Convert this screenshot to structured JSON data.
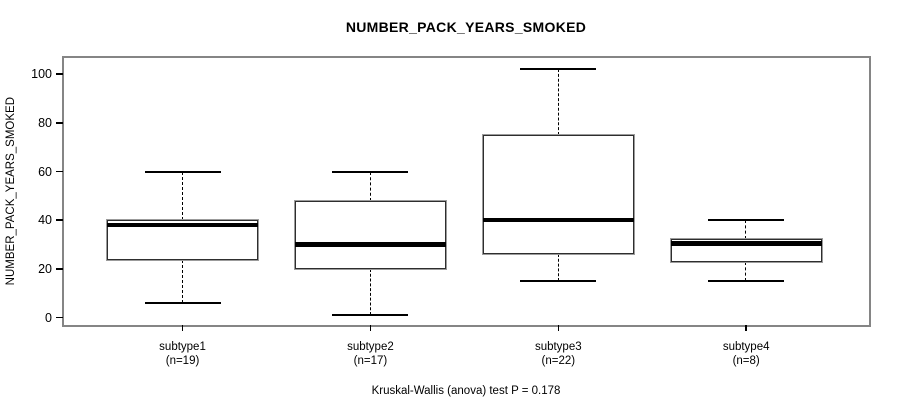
{
  "chart_data": {
    "type": "box",
    "title": "NUMBER_PACK_YEARS_SMOKED",
    "ylabel": "NUMBER_PACK_YEARS_SMOKED",
    "xlabel": "",
    "footnote": "Kruskal-Wallis (anova) test P = 0.178",
    "ylim": [
      -3,
      107
    ],
    "yticks": [
      0,
      20,
      40,
      60,
      80,
      100
    ],
    "grid": false,
    "legend": "none",
    "categories": [
      "subtype1",
      "subtype2",
      "subtype3",
      "subtype4"
    ],
    "category_counts": [
      "(n=19)",
      "(n=17)",
      "(n=22)",
      "(n=8)"
    ],
    "series": [
      {
        "name": "subtype1",
        "n": 19,
        "whisker_low": 6,
        "q1": 23.5,
        "median": 38,
        "q3": 40,
        "whisker_high": 60
      },
      {
        "name": "subtype2",
        "n": 17,
        "whisker_low": 1,
        "q1": 20,
        "median": 30,
        "q3": 48,
        "whisker_high": 60
      },
      {
        "name": "subtype3",
        "n": 22,
        "whisker_low": 15,
        "q1": 26,
        "median": 40,
        "q3": 75,
        "whisker_high": 102
      },
      {
        "name": "subtype4",
        "n": 8,
        "whisker_low": 15,
        "q1": 23,
        "median": 30.5,
        "q3": 32.5,
        "whisker_high": 40
      }
    ],
    "colors": {
      "background": "#ffffff",
      "frame": "#858585",
      "box_border": "#2e2e2e",
      "box_halo": "#9b9b9b",
      "box_fill": "#ffffff",
      "median": "#000000",
      "whisker": "#000000",
      "text": "#000000"
    }
  }
}
